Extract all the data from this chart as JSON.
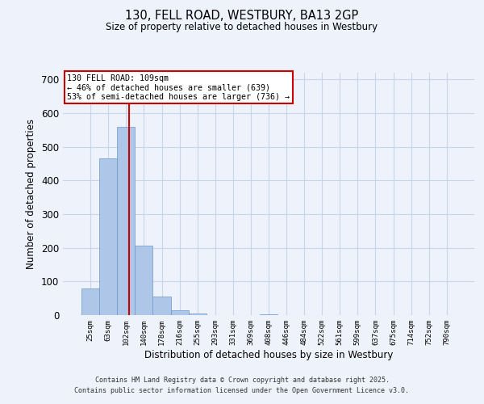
{
  "title_line1": "130, FELL ROAD, WESTBURY, BA13 2GP",
  "title_line2": "Size of property relative to detached houses in Westbury",
  "xlabel": "Distribution of detached houses by size in Westbury",
  "ylabel": "Number of detached properties",
  "categories": [
    "25sqm",
    "63sqm",
    "102sqm",
    "140sqm",
    "178sqm",
    "216sqm",
    "255sqm",
    "293sqm",
    "331sqm",
    "369sqm",
    "408sqm",
    "446sqm",
    "484sqm",
    "522sqm",
    "561sqm",
    "599sqm",
    "637sqm",
    "675sqm",
    "714sqm",
    "752sqm",
    "790sqm"
  ],
  "values": [
    80,
    465,
    560,
    207,
    55,
    15,
    5,
    1,
    0,
    0,
    3,
    0,
    0,
    0,
    0,
    0,
    0,
    0,
    0,
    0,
    0
  ],
  "bar_color": "#aec6e8",
  "bar_edge_color": "#6699cc",
  "grid_color": "#c8d4e8",
  "background_color": "#eef2fa",
  "annotation_line1": "130 FELL ROAD: 109sqm",
  "annotation_line2": "← 46% of detached houses are smaller (639)",
  "annotation_line3": "53% of semi-detached houses are larger (736) →",
  "vline_color": "#cc0000",
  "vline_x_index": 2.18,
  "annotation_box_color": "#cc0000",
  "ylim": [
    0,
    720
  ],
  "yticks": [
    0,
    100,
    200,
    300,
    400,
    500,
    600,
    700
  ],
  "footer_line1": "Contains HM Land Registry data © Crown copyright and database right 2025.",
  "footer_line2": "Contains public sector information licensed under the Open Government Licence v3.0."
}
